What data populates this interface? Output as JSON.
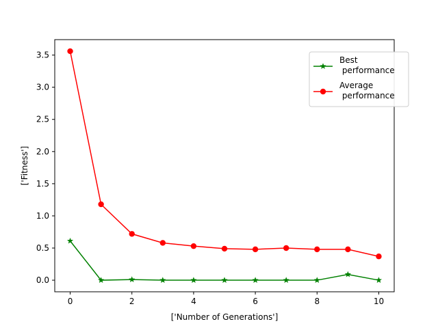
{
  "chart_data": {
    "type": "line",
    "title": "",
    "xlabel": "['Number of Generations']",
    "ylabel": "['Fitness']",
    "xlim": [
      -0.5,
      10.5
    ],
    "ylim": [
      -0.18,
      3.74
    ],
    "xticks": [
      0,
      2,
      4,
      6,
      8,
      10
    ],
    "yticks": [
      0.0,
      0.5,
      1.0,
      1.5,
      2.0,
      2.5,
      3.0,
      3.5
    ],
    "xtick_labels": [
      "0",
      "2",
      "4",
      "6",
      "8",
      "10"
    ],
    "ytick_labels": [
      "0.0",
      "0.5",
      "1.0",
      "1.5",
      "2.0",
      "2.5",
      "3.0",
      "3.5"
    ],
    "grid": false,
    "legend_position": "upper-right",
    "x": [
      0,
      1,
      2,
      3,
      4,
      5,
      6,
      7,
      8,
      9,
      10
    ],
    "series": [
      {
        "name_lines": [
          "Best",
          " performance"
        ],
        "color": "#008000",
        "marker": "star",
        "values": [
          0.61,
          0.0,
          0.01,
          0.0,
          0.0,
          0.0,
          0.0,
          0.0,
          0.0,
          0.09,
          0.0
        ]
      },
      {
        "name_lines": [
          "Average",
          " performance"
        ],
        "color": "#ff0000",
        "marker": "circle",
        "values": [
          3.56,
          1.18,
          0.72,
          0.58,
          0.53,
          0.49,
          0.48,
          0.5,
          0.48,
          0.48,
          0.37
        ]
      }
    ]
  }
}
